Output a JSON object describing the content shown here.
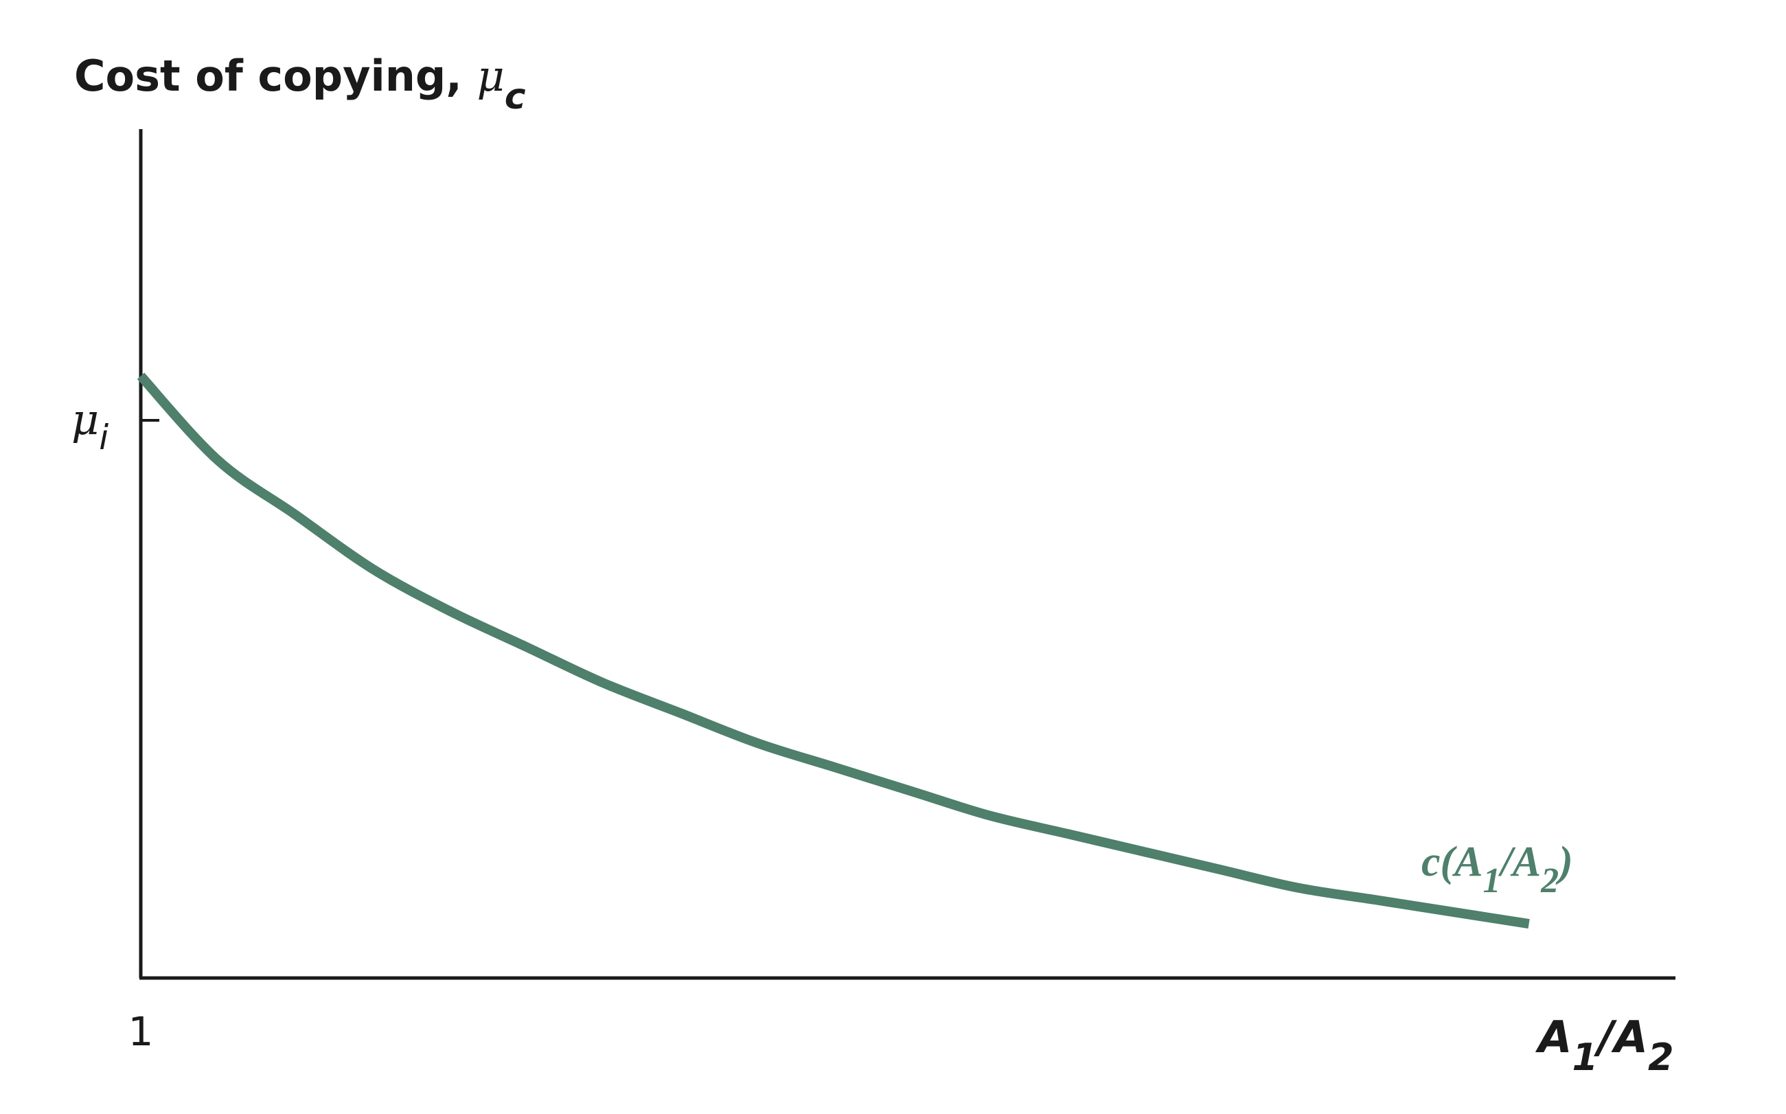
{
  "chart_data": {
    "type": "line",
    "ylabel": {
      "text": "Cost of copying, ",
      "symbol": "μ",
      "subscript": "c"
    },
    "xlabel": {
      "a": "A",
      "sub1": "1",
      "slash": "/",
      "b": "A",
      "sub2": "2"
    },
    "y_ticks": [
      {
        "symbol": "μ",
        "subscript": "i",
        "value": 1.0
      }
    ],
    "x_ticks": [
      {
        "label": "1",
        "value": 1
      }
    ],
    "xlim": [
      1,
      10.95
    ],
    "ylim": [
      0,
      1.41
    ],
    "grid": false,
    "colors": {
      "curve": "#4e806c",
      "axis": "#1a1a1a"
    },
    "series": [
      {
        "name": "c(A1/A2)",
        "label": {
          "prefix": "c(",
          "a": "A",
          "sub1": "1",
          "slash": "/",
          "b": "A",
          "sub2": "2",
          "suffix": ")"
        },
        "x": [
          1,
          1.5,
          2,
          2.5,
          3,
          3.5,
          4,
          4.5,
          5,
          5.5,
          6,
          6.5,
          7,
          7.5,
          8,
          8.5,
          9,
          9.5,
          10
        ],
        "values": [
          1.0,
          0.86,
          0.77,
          0.68,
          0.61,
          0.55,
          0.49,
          0.44,
          0.39,
          0.35,
          0.31,
          0.27,
          0.24,
          0.21,
          0.18,
          0.15,
          0.13,
          0.11,
          0.09
        ]
      }
    ]
  }
}
